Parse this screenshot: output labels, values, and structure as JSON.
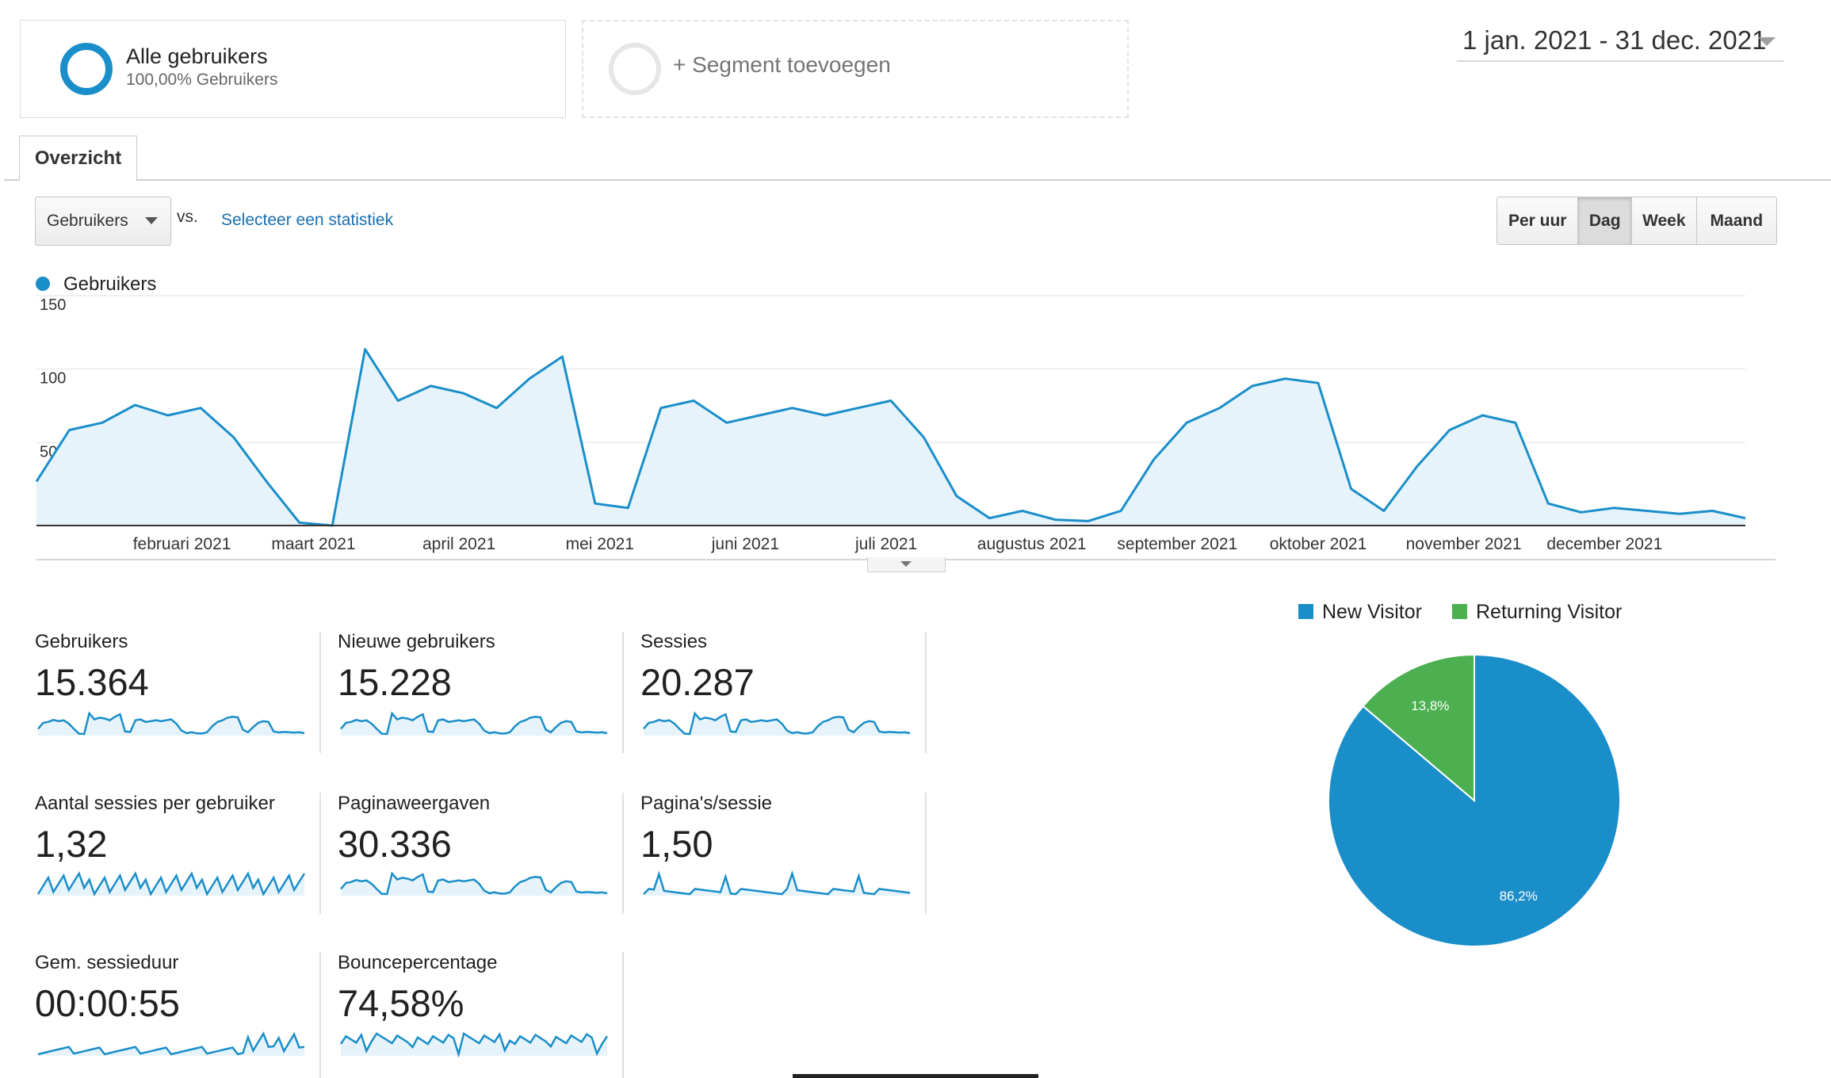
{
  "segments": {
    "active": {
      "title": "Alle gebruikers",
      "subtitle": "100,00% Gebruikers"
    },
    "add_label": "+ Segment toevoegen"
  },
  "date_range": "1 jan. 2021 - 31 dec. 2021",
  "tabs": [
    {
      "label": "Overzicht"
    }
  ],
  "metric_selector": {
    "selected": "Gebruikers",
    "vs_label": "vs.",
    "compare_link": "Selecteer een statistiek"
  },
  "granularity": {
    "options": [
      "Per uur",
      "Dag",
      "Week",
      "Maand"
    ],
    "selected": "Dag"
  },
  "colors": {
    "accent": "#1a8ec9",
    "area_fill": "#e6f3fa",
    "returning": "#4caf50",
    "grid": "#eeeeee"
  },
  "chart_data": [
    {
      "type": "area",
      "legend": [
        "Gebruikers"
      ],
      "y_ticks": [
        "150",
        "100",
        "50"
      ],
      "ylim": [
        0,
        150
      ],
      "x_month_labels": [
        "februari 2021",
        "maart 2021",
        "april 2021",
        "mei 2021",
        "juni 2021",
        "juli 2021",
        "augustus 2021",
        "september 2021",
        "oktober 2021",
        "november 2021",
        "december 2021"
      ],
      "series": [
        {
          "name": "Gebruikers",
          "x": [
            "2021-01-01",
            "2021-01-08",
            "2021-01-15",
            "2021-01-22",
            "2021-01-29",
            "2021-02-05",
            "2021-02-12",
            "2021-02-19",
            "2021-02-26",
            "2021-03-05",
            "2021-03-12",
            "2021-03-19",
            "2021-03-26",
            "2021-04-02",
            "2021-04-09",
            "2021-04-16",
            "2021-04-23",
            "2021-04-30",
            "2021-05-07",
            "2021-05-14",
            "2021-05-21",
            "2021-05-28",
            "2021-06-04",
            "2021-06-11",
            "2021-06-18",
            "2021-06-25",
            "2021-07-02",
            "2021-07-09",
            "2021-07-16",
            "2021-07-23",
            "2021-07-30",
            "2021-08-06",
            "2021-08-13",
            "2021-08-20",
            "2021-08-27",
            "2021-09-03",
            "2021-09-10",
            "2021-09-17",
            "2021-09-24",
            "2021-10-01",
            "2021-10-08",
            "2021-10-15",
            "2021-10-22",
            "2021-10-29",
            "2021-11-05",
            "2021-11-12",
            "2021-11-19",
            "2021-11-26",
            "2021-12-03",
            "2021-12-10",
            "2021-12-17",
            "2021-12-24",
            "2021-12-31"
          ],
          "values": [
            30,
            65,
            70,
            82,
            75,
            80,
            60,
            30,
            2,
            0,
            120,
            85,
            95,
            90,
            80,
            100,
            115,
            15,
            12,
            80,
            85,
            70,
            75,
            80,
            75,
            80,
            85,
            60,
            20,
            5,
            10,
            4,
            3,
            10,
            45,
            70,
            80,
            95,
            100,
            97,
            25,
            10,
            40,
            65,
            75,
            70,
            15,
            9,
            12,
            10,
            8,
            10,
            5
          ]
        }
      ]
    },
    {
      "type": "pie",
      "legend": [
        "New Visitor",
        "Returning Visitor"
      ],
      "categories": [
        "New Visitor",
        "Returning Visitor"
      ],
      "values": [
        86.2,
        13.8
      ],
      "labels": [
        "86,2%",
        "13,8%"
      ]
    }
  ],
  "metrics": [
    {
      "label": "Gebruikers",
      "value": "15.364"
    },
    {
      "label": "Nieuwe gebruikers",
      "value": "15.228"
    },
    {
      "label": "Sessies",
      "value": "20.287"
    },
    {
      "label": "Aantal sessies per gebruiker",
      "value": "1,32"
    },
    {
      "label": "Paginaweergaven",
      "value": "30.336"
    },
    {
      "label": "Pagina's/sessie",
      "value": "1,50"
    },
    {
      "label": "Gem. sessieduur",
      "value": "00:00:55"
    },
    {
      "label": "Bouncepercentage",
      "value": "74,58%"
    }
  ]
}
